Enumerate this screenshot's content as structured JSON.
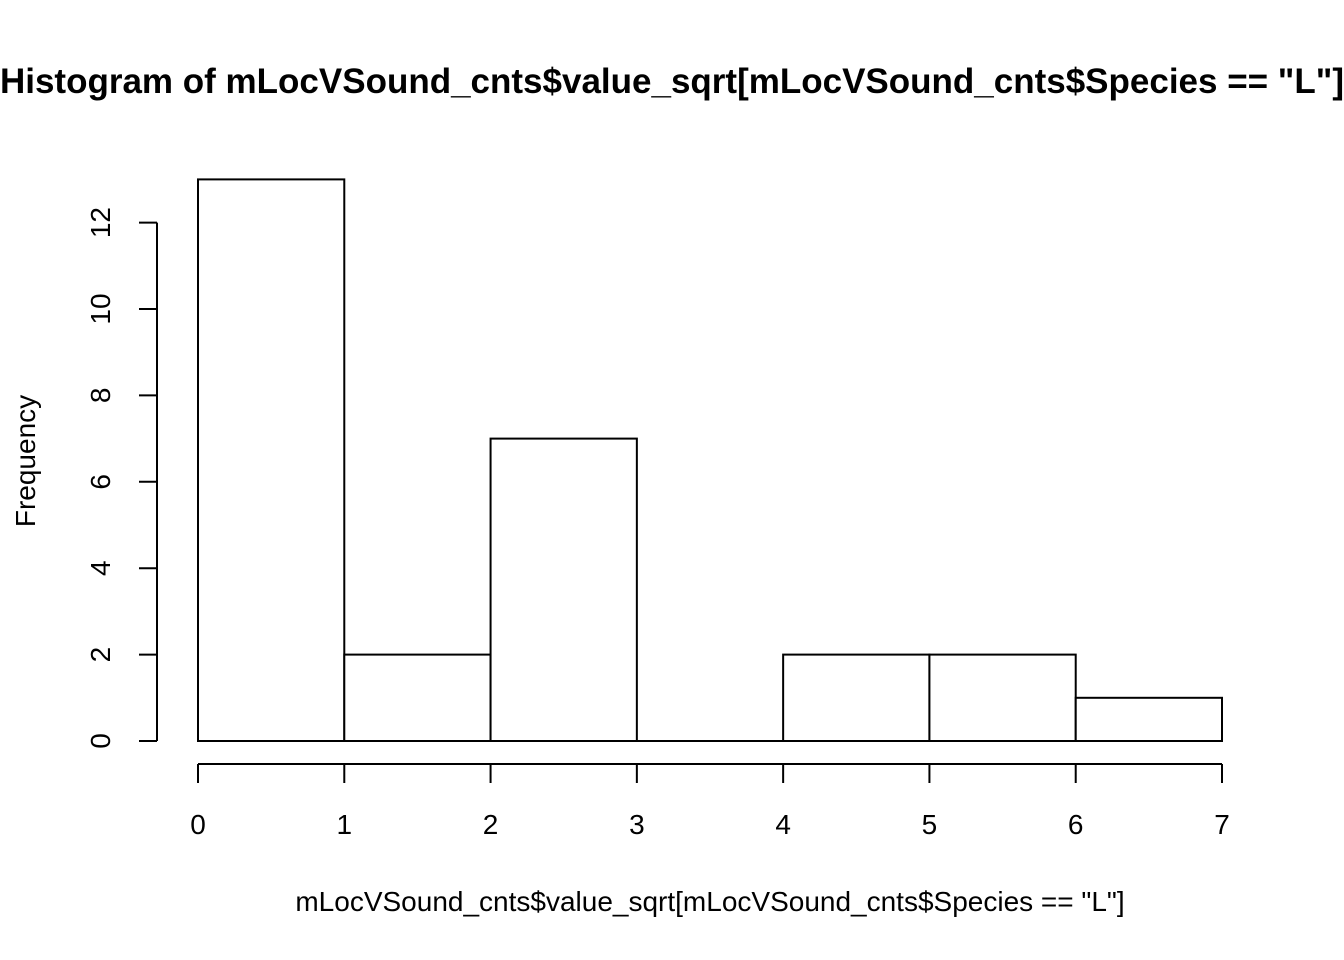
{
  "chart_data": {
    "type": "bar",
    "subtype": "histogram",
    "title": "Histogram of mLocVSound_cnts$value_sqrt[mLocVSound_cnts$Species == \"L\"]",
    "xlabel": "mLocVSound_cnts$value_sqrt[mLocVSound_cnts$Species == \"L\"]",
    "ylabel": "Frequency",
    "bins": [
      [
        0,
        1
      ],
      [
        1,
        2
      ],
      [
        2,
        3
      ],
      [
        3,
        4
      ],
      [
        4,
        5
      ],
      [
        5,
        6
      ],
      [
        6,
        7
      ]
    ],
    "values": [
      13,
      2,
      7,
      0,
      2,
      2,
      1
    ],
    "xlim": [
      0,
      7
    ],
    "ylim": [
      0,
      13
    ],
    "x_ticks": [
      "0",
      "1",
      "2",
      "3",
      "4",
      "5",
      "6",
      "7"
    ],
    "y_ticks": [
      "0",
      "2",
      "4",
      "6",
      "8",
      "10",
      "12"
    ],
    "grid": false,
    "legend": "none",
    "bar_fill": "#ffffff",
    "bar_stroke": "#000000"
  }
}
